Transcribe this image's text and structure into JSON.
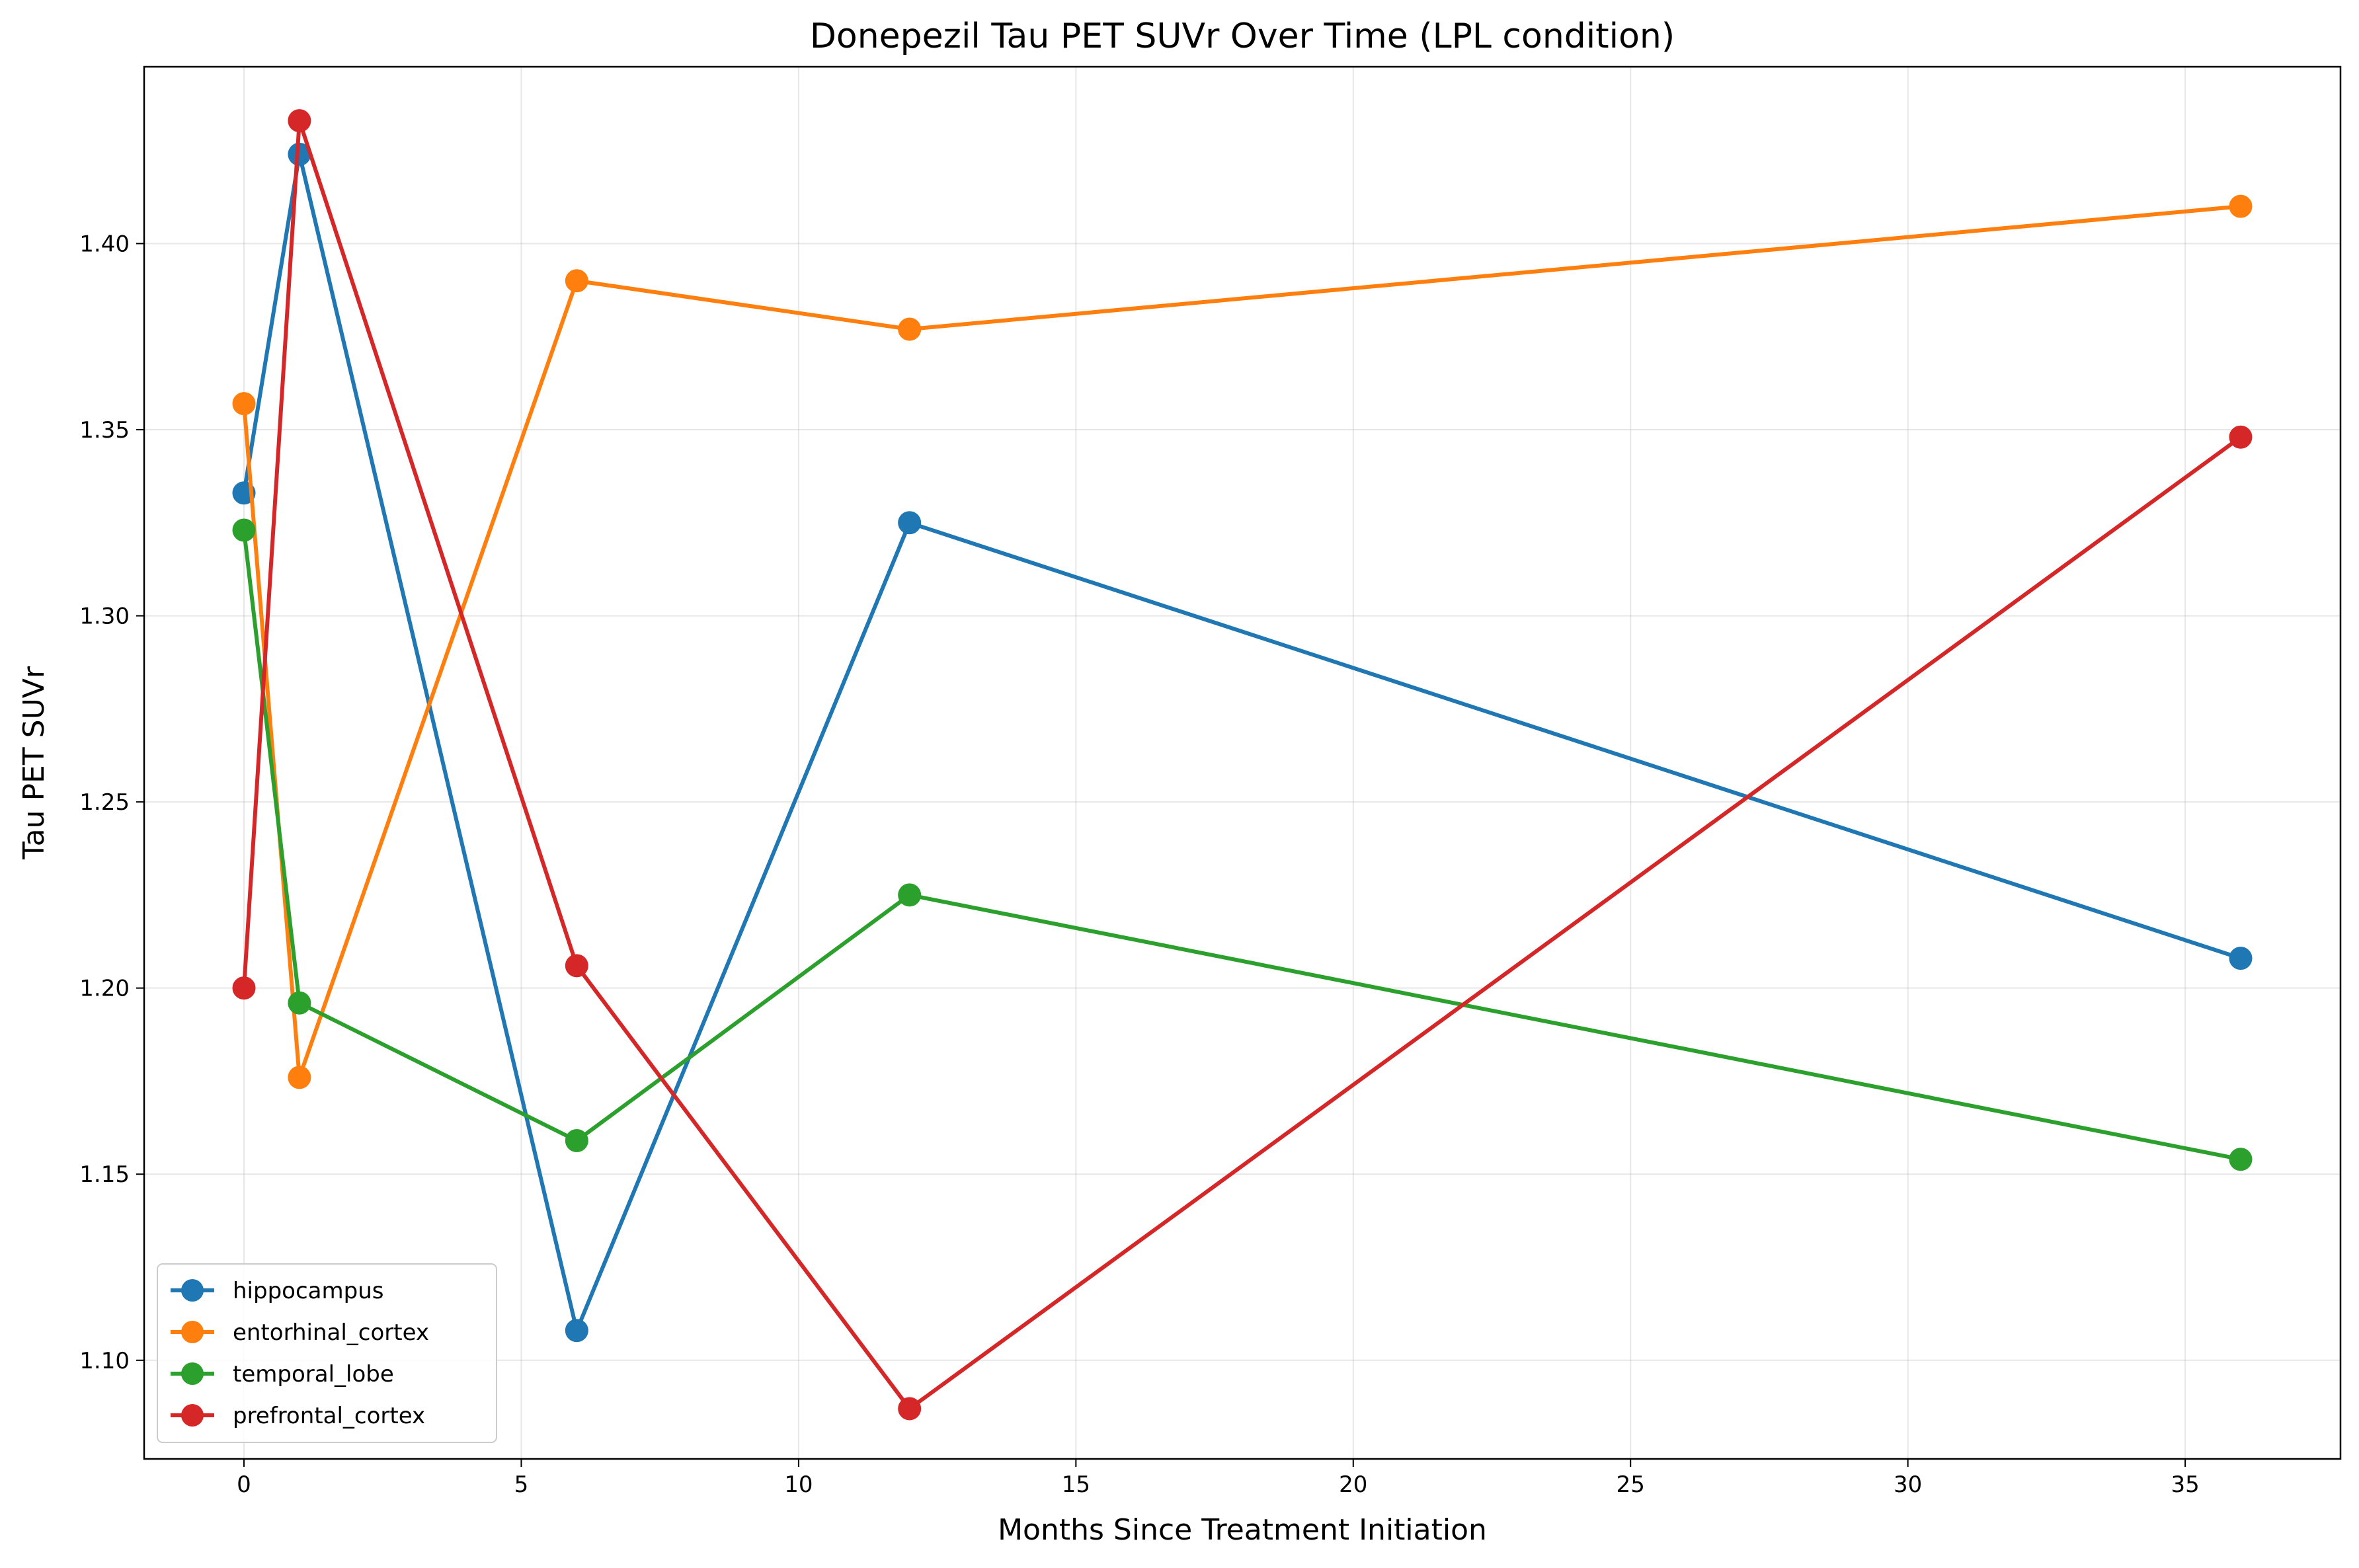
{
  "chart_data": {
    "type": "line",
    "title": "Donepezil Tau PET SUVr Over Time (LPL condition)",
    "xlabel": "Months Since Treatment Initiation",
    "ylabel": "Tau PET SUVr",
    "xlim": [
      -1.8,
      37.8
    ],
    "ylim": [
      1.0735,
      1.4475
    ],
    "x_ticks": [
      0,
      5,
      10,
      15,
      20,
      25,
      30,
      35
    ],
    "x_tick_labels": [
      "0",
      "5",
      "10",
      "15",
      "20",
      "25",
      "30",
      "35"
    ],
    "y_ticks": [
      1.1,
      1.15,
      1.2,
      1.25,
      1.3,
      1.35,
      1.4
    ],
    "y_tick_labels": [
      "1.10",
      "1.15",
      "1.20",
      "1.25",
      "1.30",
      "1.35",
      "1.40"
    ],
    "grid": true,
    "legend_position": "lower-left",
    "x": [
      0,
      1,
      6,
      12,
      36
    ],
    "series": [
      {
        "name": "hippocampus",
        "color": "#1f77b4",
        "values": [
          1.333,
          1.424,
          1.108,
          1.325,
          1.208
        ]
      },
      {
        "name": "entorhinal_cortex",
        "color": "#ff7f0e",
        "values": [
          1.357,
          1.176,
          1.39,
          1.377,
          1.41
        ]
      },
      {
        "name": "temporal_lobe",
        "color": "#2ca02c",
        "values": [
          1.323,
          1.196,
          1.159,
          1.225,
          1.154
        ]
      },
      {
        "name": "prefrontal_cortex",
        "color": "#d62728",
        "values": [
          1.2,
          1.433,
          1.206,
          1.087,
          1.348
        ]
      }
    ]
  }
}
